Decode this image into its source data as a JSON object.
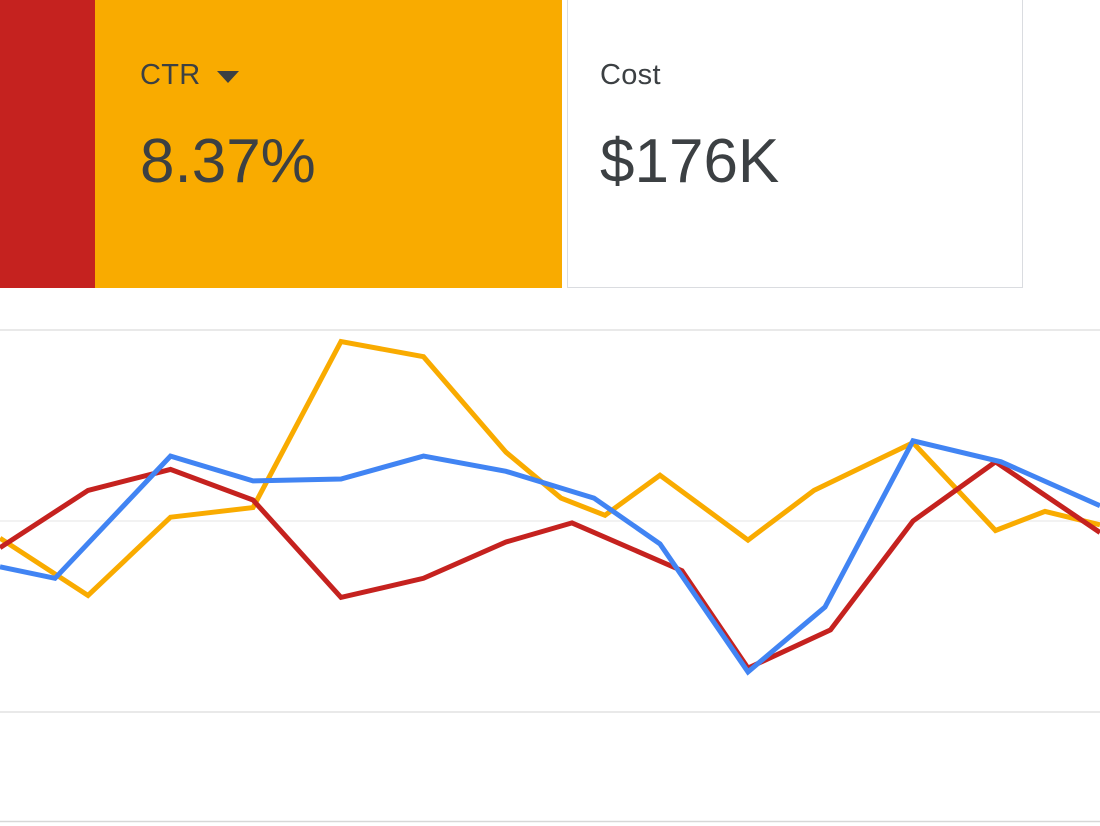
{
  "page": {
    "background": "#ffffff"
  },
  "cards": {
    "left_partial": {
      "label": "",
      "color": "#c5221f"
    },
    "ctr": {
      "label": "CTR",
      "value": "8.37%",
      "color": "#f9ab00",
      "text_color": "#3c4043",
      "dropdown_icon": "triangle-down"
    },
    "cost": {
      "label": "Cost",
      "value": "$176K",
      "color": "#ffffff",
      "border_color": "#dadce0",
      "text_color": "#3c4043"
    }
  },
  "chart_data": {
    "type": "line",
    "title": "",
    "xlabel": "",
    "ylabel": "",
    "x_axis": {
      "tick_labels_visible": false,
      "x_units": "percent of visible chart width (crop, no labels shown)"
    },
    "y_axis": {
      "tick_labels_visible": false,
      "y_units": "0 = lower gridline, 100 = upper gridline (axis labels not visible in crop)",
      "gridlines": [
        {
          "value": 0,
          "color": "#e2e2e2"
        },
        {
          "value": 50,
          "color": "#eeeeee"
        },
        {
          "value": 100,
          "color": "#e2e2e2"
        }
      ]
    },
    "bottom_border_color": "#d7d7d7",
    "legend": "none visible; line colors match metric card colors",
    "series": [
      {
        "id": "yellow-series",
        "matches_card": "CTR",
        "color": "#f9ab00",
        "points": [
          [
            0,
            45.5
          ],
          [
            8,
            30.5
          ],
          [
            15.5,
            51
          ],
          [
            23,
            53.5
          ],
          [
            31,
            97
          ],
          [
            38.5,
            93
          ],
          [
            46,
            68
          ],
          [
            51,
            56
          ],
          [
            55,
            51.5
          ],
          [
            60,
            62
          ],
          [
            68,
            45
          ],
          [
            74,
            58
          ],
          [
            83,
            70.5
          ],
          [
            90.5,
            47.5
          ],
          [
            95,
            52.5
          ],
          [
            100,
            49
          ]
        ]
      },
      {
        "id": "red-series",
        "matches_card": "left partial red card",
        "color": "#c5221f",
        "points": [
          [
            0,
            43
          ],
          [
            8,
            58
          ],
          [
            15.5,
            63.5
          ],
          [
            23,
            55.5
          ],
          [
            31,
            30
          ],
          [
            38.5,
            35
          ],
          [
            46,
            44.5
          ],
          [
            52,
            49.5
          ],
          [
            62,
            37
          ],
          [
            68,
            11.5
          ],
          [
            75.5,
            21.5
          ],
          [
            83,
            50
          ],
          [
            90.5,
            65.5
          ],
          [
            100,
            47
          ]
        ]
      },
      {
        "id": "blue-series",
        "matches_card": "metric card off-screen left",
        "color": "#4184f3",
        "points": [
          [
            0,
            38
          ],
          [
            5,
            35
          ],
          [
            15.5,
            67
          ],
          [
            23,
            60.5
          ],
          [
            31,
            61
          ],
          [
            38.5,
            67
          ],
          [
            46,
            63
          ],
          [
            54,
            56
          ],
          [
            60,
            44
          ],
          [
            68,
            10.5
          ],
          [
            75,
            27.5
          ],
          [
            83,
            71
          ],
          [
            91,
            65.5
          ],
          [
            100,
            54
          ]
        ]
      }
    ]
  }
}
